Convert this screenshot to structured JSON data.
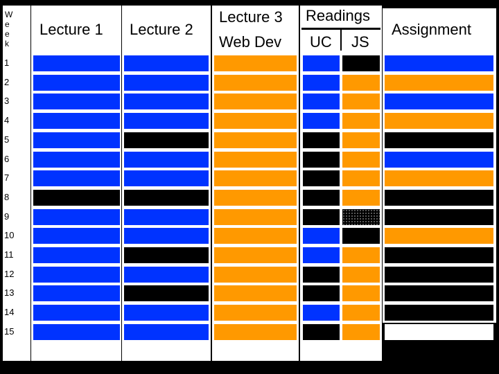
{
  "headers": {
    "week_letters": [
      "W",
      "e",
      "e",
      "k"
    ],
    "lecture1": "Lecture 1",
    "lecture2": "Lecture 2",
    "lecture3": "Lecture 3",
    "web_dev": "Web Dev",
    "readings": "Readings",
    "uc": "UC",
    "js": "JS",
    "assignment": "Assignment"
  },
  "colors": {
    "blue": "#0033ff",
    "orange": "#ff9900",
    "black": "#000000",
    "white": "#ffffff",
    "hatched": "hatched"
  },
  "weeks": [
    "1",
    "2",
    "3",
    "4",
    "5",
    "6",
    "7",
    "8",
    "9",
    "10",
    "11",
    "12",
    "13",
    "14",
    "15"
  ],
  "grid": {
    "lecture1": [
      "blue",
      "blue",
      "blue",
      "blue",
      "blue",
      "blue",
      "blue",
      "black",
      "blue",
      "blue",
      "blue",
      "blue",
      "blue",
      "blue",
      "blue"
    ],
    "lecture2": [
      "blue",
      "blue",
      "blue",
      "blue",
      "black",
      "blue",
      "blue",
      "black",
      "blue",
      "blue",
      "black",
      "blue",
      "black",
      "blue",
      "blue"
    ],
    "lecture3": [
      "orange",
      "orange",
      "orange",
      "orange",
      "orange",
      "orange",
      "orange",
      "orange",
      "orange",
      "orange",
      "orange",
      "orange",
      "orange",
      "orange",
      "orange"
    ],
    "uc": [
      "blue",
      "blue",
      "blue",
      "blue",
      "black",
      "black",
      "black",
      "black",
      "black",
      "blue",
      "blue",
      "black",
      "black",
      "blue",
      "black"
    ],
    "js": [
      "black",
      "orange",
      "orange",
      "orange",
      "orange",
      "orange",
      "orange",
      "orange",
      "hatched",
      "black",
      "orange",
      "orange",
      "orange",
      "orange",
      "orange"
    ],
    "assignment": [
      "blue",
      "orange",
      "blue",
      "orange",
      "black",
      "blue",
      "orange",
      "black",
      "black",
      "orange",
      "black",
      "black",
      "black",
      "black",
      "white"
    ]
  }
}
